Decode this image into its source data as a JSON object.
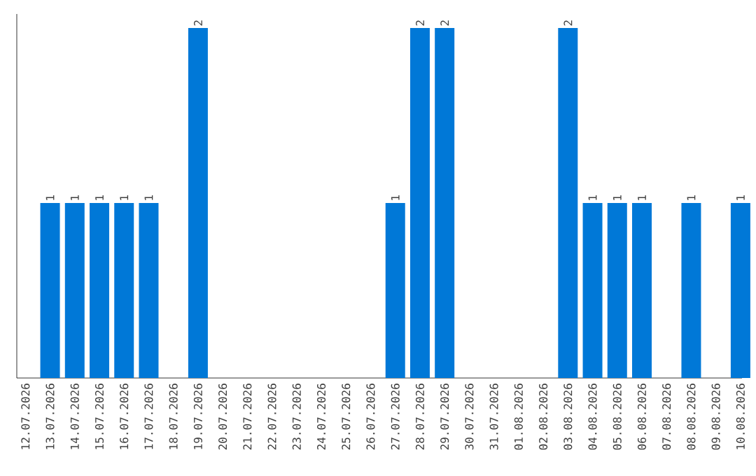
{
  "chart_data": {
    "type": "bar",
    "color": "#0078d7",
    "tick_labels": "x",
    "categories": [
      "12.07.2026",
      "13.07.2026",
      "14.07.2026",
      "15.07.2026",
      "16.07.2026",
      "17.07.2026",
      "18.07.2026",
      "19.07.2026",
      "20.07.2026",
      "21.07.2026",
      "22.07.2026",
      "23.07.2026",
      "24.07.2026",
      "25.07.2026",
      "26.07.2026",
      "27.07.2026",
      "28.07.2026",
      "29.07.2026",
      "30.07.2026",
      "31.07.2026",
      "01.08.2026",
      "02.08.2026",
      "03.08.2026",
      "04.08.2026",
      "05.08.2026",
      "06.08.2026",
      "07.08.2026",
      "08.08.2026",
      "09.08.2026",
      "10.08.2026"
    ],
    "values": [
      0,
      1,
      1,
      1,
      1,
      1,
      0,
      2,
      0,
      0,
      0,
      0,
      0,
      0,
      0,
      1,
      2,
      2,
      0,
      0,
      0,
      0,
      2,
      1,
      1,
      1,
      0,
      1,
      0,
      1
    ],
    "value_labels": [
      null,
      "1",
      "1",
      "1",
      "1",
      "1",
      null,
      "2",
      null,
      null,
      null,
      null,
      null,
      null,
      null,
      "1",
      "2",
      "2",
      null,
      null,
      null,
      null,
      "2",
      "1",
      "1",
      "1",
      null,
      "1",
      null,
      "1"
    ]
  }
}
